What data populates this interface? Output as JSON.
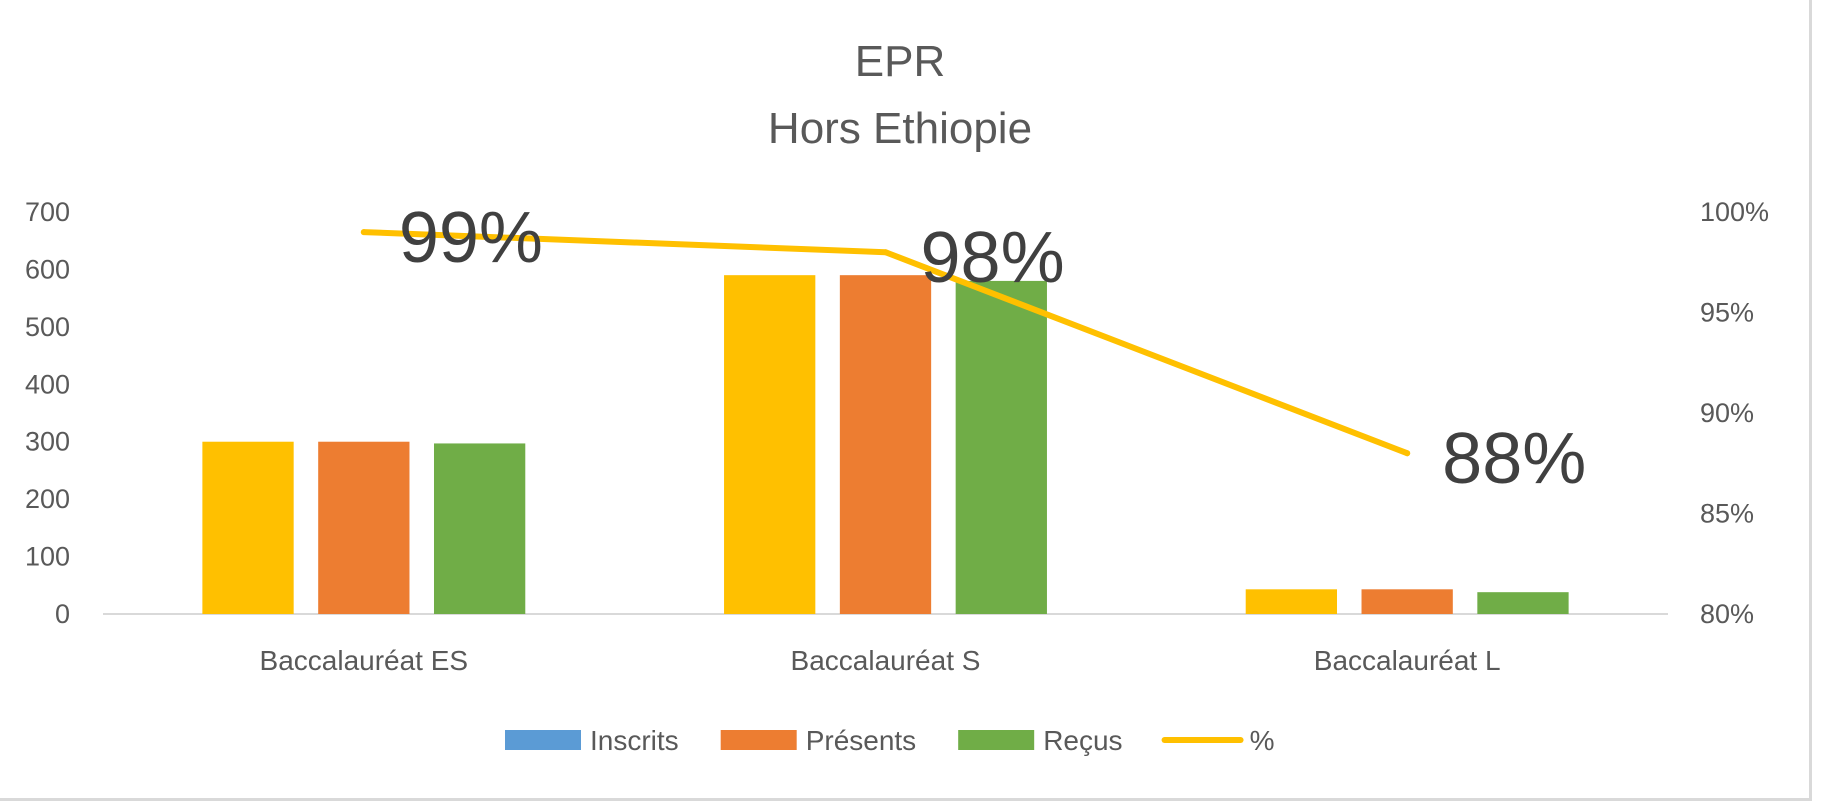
{
  "chart_data": {
    "type": "bar",
    "title": "EPR",
    "subtitle": "Hors Ethiopie",
    "categories": [
      "Baccalauréat ES",
      "Baccalauréat S",
      "Baccalauréat L"
    ],
    "series": [
      {
        "name": "Inscrits",
        "kind": "bar",
        "values": [
          300,
          590,
          43
        ],
        "color": "#FFC000",
        "legend_color": "#5B9BD5"
      },
      {
        "name": "Présents",
        "kind": "bar",
        "values": [
          300,
          590,
          43
        ],
        "color": "#ED7D31",
        "legend_color": "#ED7D31"
      },
      {
        "name": "Reçus",
        "kind": "bar",
        "values": [
          297,
          580,
          38
        ],
        "color": "#70AD47",
        "legend_color": "#70AD47"
      },
      {
        "name": "%",
        "kind": "line",
        "axis": "right",
        "values": [
          99,
          98,
          88
        ],
        "labels": [
          "99%",
          "98%",
          "88%"
        ],
        "color": "#FFC000"
      }
    ],
    "ylim": [
      0,
      700
    ],
    "yticks": [
      "0",
      "100",
      "200",
      "300",
      "400",
      "500",
      "600",
      "700"
    ],
    "y2lim": [
      80,
      100
    ],
    "y2ticks": [
      "80%",
      "85%",
      "90%",
      "95%",
      "100%"
    ],
    "legend": "bottom",
    "grid": false
  }
}
